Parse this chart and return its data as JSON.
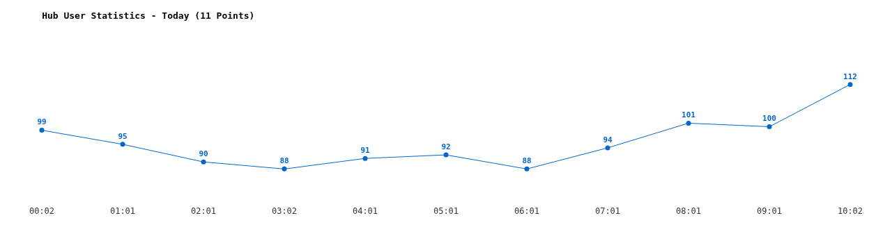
{
  "chart_data": {
    "type": "line",
    "title": "Hub User Statistics - Today (11 Points)",
    "categories": [
      "00:02",
      "01:01",
      "02:01",
      "03:02",
      "04:01",
      "05:01",
      "06:01",
      "07:01",
      "08:01",
      "09:01",
      "10:02"
    ],
    "values": [
      99,
      95,
      90,
      88,
      91,
      92,
      88,
      94,
      101,
      100,
      112
    ],
    "color": "#0066cc",
    "marker": "circle",
    "line_style": "solid",
    "data_labels": true,
    "tick_labels": "x"
  }
}
